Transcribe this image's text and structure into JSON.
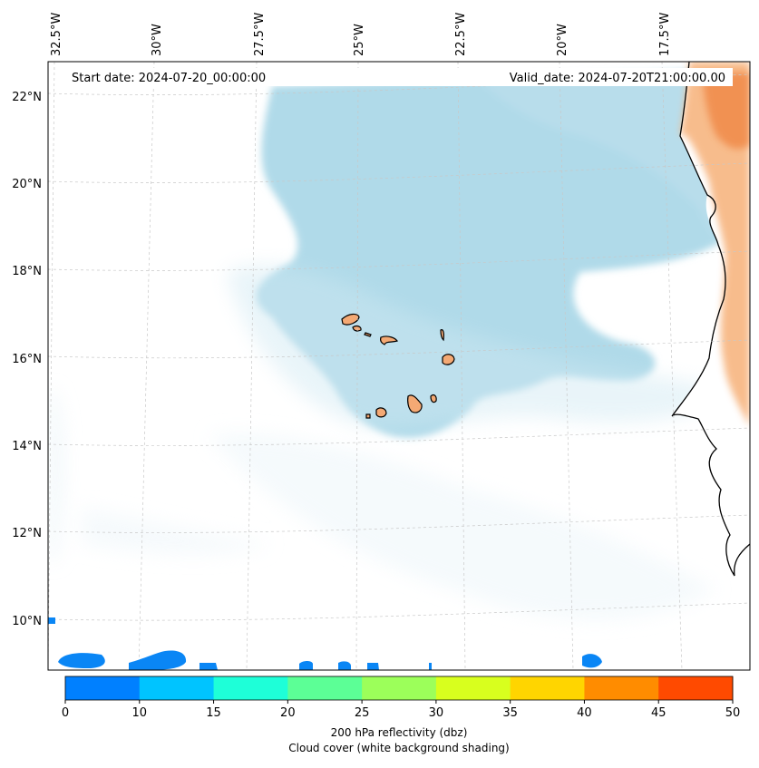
{
  "header": {
    "start_date": "Start date: 2024-07-20_00:00:00",
    "valid_date": "Valid_date: 2024-07-20T21:00:00.00"
  },
  "axes": {
    "longitude_labels": [
      "32.5°W",
      "30°W",
      "27.5°W",
      "25°W",
      "22.5°W",
      "20°W",
      "17.5°W"
    ],
    "latitude_labels": [
      "22°N",
      "20°N",
      "18°N",
      "16°N",
      "14°N",
      "12°N",
      "10°N"
    ],
    "grid": true
  },
  "colorbar": {
    "ticks": [
      "0",
      "10",
      "15",
      "20",
      "25",
      "30",
      "35",
      "40",
      "45",
      "50"
    ],
    "colors": [
      "#0080ff",
      "#00c4ff",
      "#1effd8",
      "#5cff96",
      "#9cff5a",
      "#d8ff1e",
      "#ffd500",
      "#ff8c00",
      "#ff4a00"
    ],
    "label": "200 hPa reflectivity (dbz)",
    "sublabel": "Cloud cover (white background shading)"
  },
  "colors": {
    "cloud": "#add8e6",
    "land_warm": "#f5a05a",
    "island_fill": "#f4a974"
  }
}
